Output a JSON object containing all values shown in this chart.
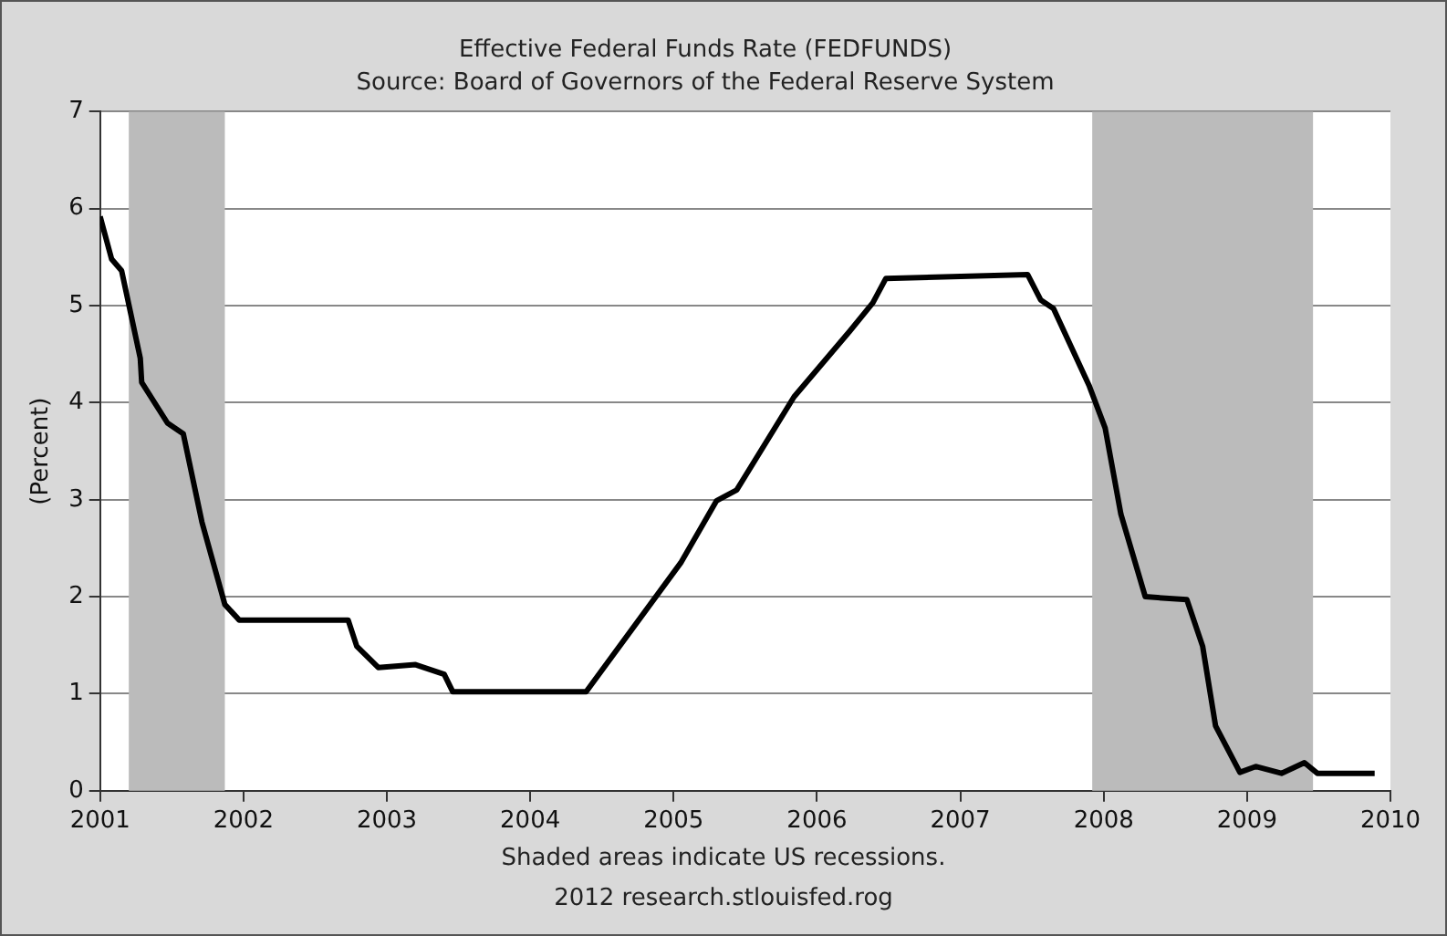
{
  "chart_data": {
    "type": "line",
    "title": "Effective Federal Funds Rate (FEDFUNDS)",
    "subtitle": "Source: Board of Governors of the Federal Reserve System",
    "ylabel": "(Percent)",
    "annotations": [
      "Shaded areas indicate US recessions.",
      "2012 research.stlouisfed.rog"
    ],
    "x": [
      2001.0,
      2001.08,
      2001.15,
      2001.28,
      2001.29,
      2001.47,
      2001.58,
      2001.71,
      2001.87,
      2001.97,
      2002.73,
      2002.79,
      2002.94,
      2003.2,
      2003.4,
      2003.46,
      2004.39,
      2005.05,
      2005.3,
      2005.44,
      2005.84,
      2006.23,
      2006.39,
      2006.48,
      2007.47,
      2007.56,
      2007.65,
      2007.9,
      2008.01,
      2008.12,
      2008.29,
      2008.58,
      2008.69,
      2008.78,
      2008.95,
      2009.06,
      2009.24,
      2009.4,
      2009.49,
      2009.89
    ],
    "series": [
      {
        "color": "#000000",
        "values": [
          5.92,
          5.48,
          5.36,
          4.46,
          4.21,
          3.79,
          3.68,
          2.77,
          1.92,
          1.76,
          1.76,
          1.49,
          1.27,
          1.3,
          1.2,
          1.02,
          1.02,
          2.35,
          2.99,
          3.1,
          4.06,
          4.74,
          5.03,
          5.28,
          5.32,
          5.06,
          4.97,
          4.17,
          3.74,
          2.85,
          2.0,
          1.97,
          1.49,
          0.67,
          0.19,
          0.25,
          0.18,
          0.29,
          0.18,
          0.18
        ]
      }
    ],
    "xlim": [
      2001,
      2010
    ],
    "xticks": [
      2001,
      2002,
      2003,
      2004,
      2005,
      2006,
      2007,
      2008,
      2009,
      2010
    ],
    "ylim": [
      0,
      7
    ],
    "yticks": [
      0,
      1,
      2,
      3,
      4,
      5,
      6,
      7
    ],
    "grid": "y",
    "bands": [
      {
        "axis": "x",
        "from": 2001.2,
        "to": 2001.87,
        "color": "#bbbbbb"
      },
      {
        "axis": "x",
        "from": 2007.92,
        "to": 2009.46,
        "color": "#bbbbbb"
      }
    ]
  }
}
